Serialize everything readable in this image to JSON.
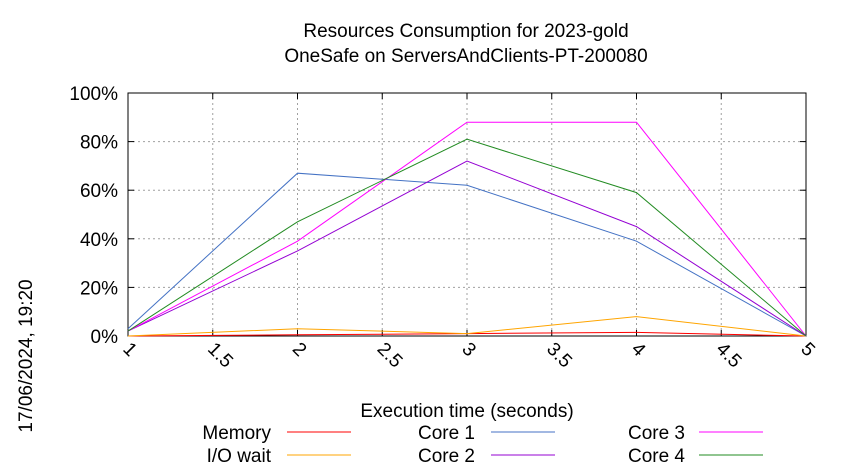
{
  "chart_data": {
    "type": "line",
    "title": [
      "Resources Consumption for 2023-gold",
      "OneSafe on ServersAndClients-PT-200080"
    ],
    "xlabel": "Execution time (seconds)",
    "ylabel": "",
    "side_label": "17/06/2024, 19:20",
    "xlim": [
      1,
      5
    ],
    "ylim": [
      0,
      100
    ],
    "x_ticks": [
      "1",
      "1.5",
      "2",
      "2.5",
      "3",
      "3.5",
      "4",
      "4.5",
      "5"
    ],
    "x_tick_values": [
      1,
      1.5,
      2,
      2.5,
      3,
      3.5,
      4,
      4.5,
      5
    ],
    "y_ticks": [
      "0%",
      "20%",
      "40%",
      "60%",
      "80%",
      "100%"
    ],
    "y_tick_values": [
      0,
      20,
      40,
      60,
      80,
      100
    ],
    "grid": true,
    "legend_position": "bottom",
    "x": [
      1,
      2,
      3,
      4,
      5
    ],
    "series": [
      {
        "name": "Memory",
        "color": "#ff0000",
        "values": [
          0,
          0.5,
          1,
          1.5,
          0
        ]
      },
      {
        "name": "I/O wait",
        "color": "#ffa500",
        "values": [
          0,
          3,
          1,
          8,
          0
        ]
      },
      {
        "name": "Core 1",
        "color": "#4472c4",
        "values": [
          3,
          67,
          62,
          39,
          0
        ]
      },
      {
        "name": "Core 2",
        "color": "#9400d3",
        "values": [
          2,
          35,
          72,
          45,
          0
        ]
      },
      {
        "name": "Core 3",
        "color": "#ff00ff",
        "values": [
          2,
          39,
          88,
          88,
          0
        ]
      },
      {
        "name": "Core 4",
        "color": "#228b22",
        "values": [
          2,
          47,
          81,
          59,
          0
        ]
      }
    ]
  }
}
